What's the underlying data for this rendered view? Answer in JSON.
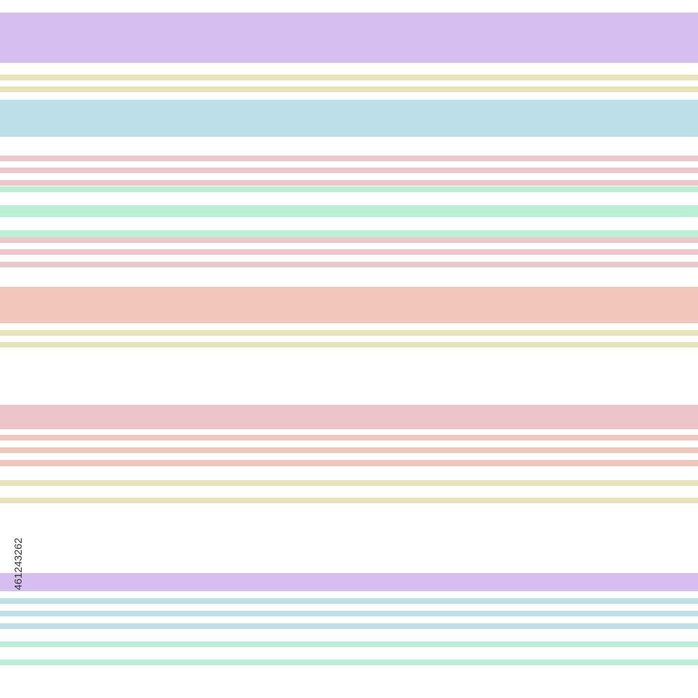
{
  "stock_id": "461243262"
}
